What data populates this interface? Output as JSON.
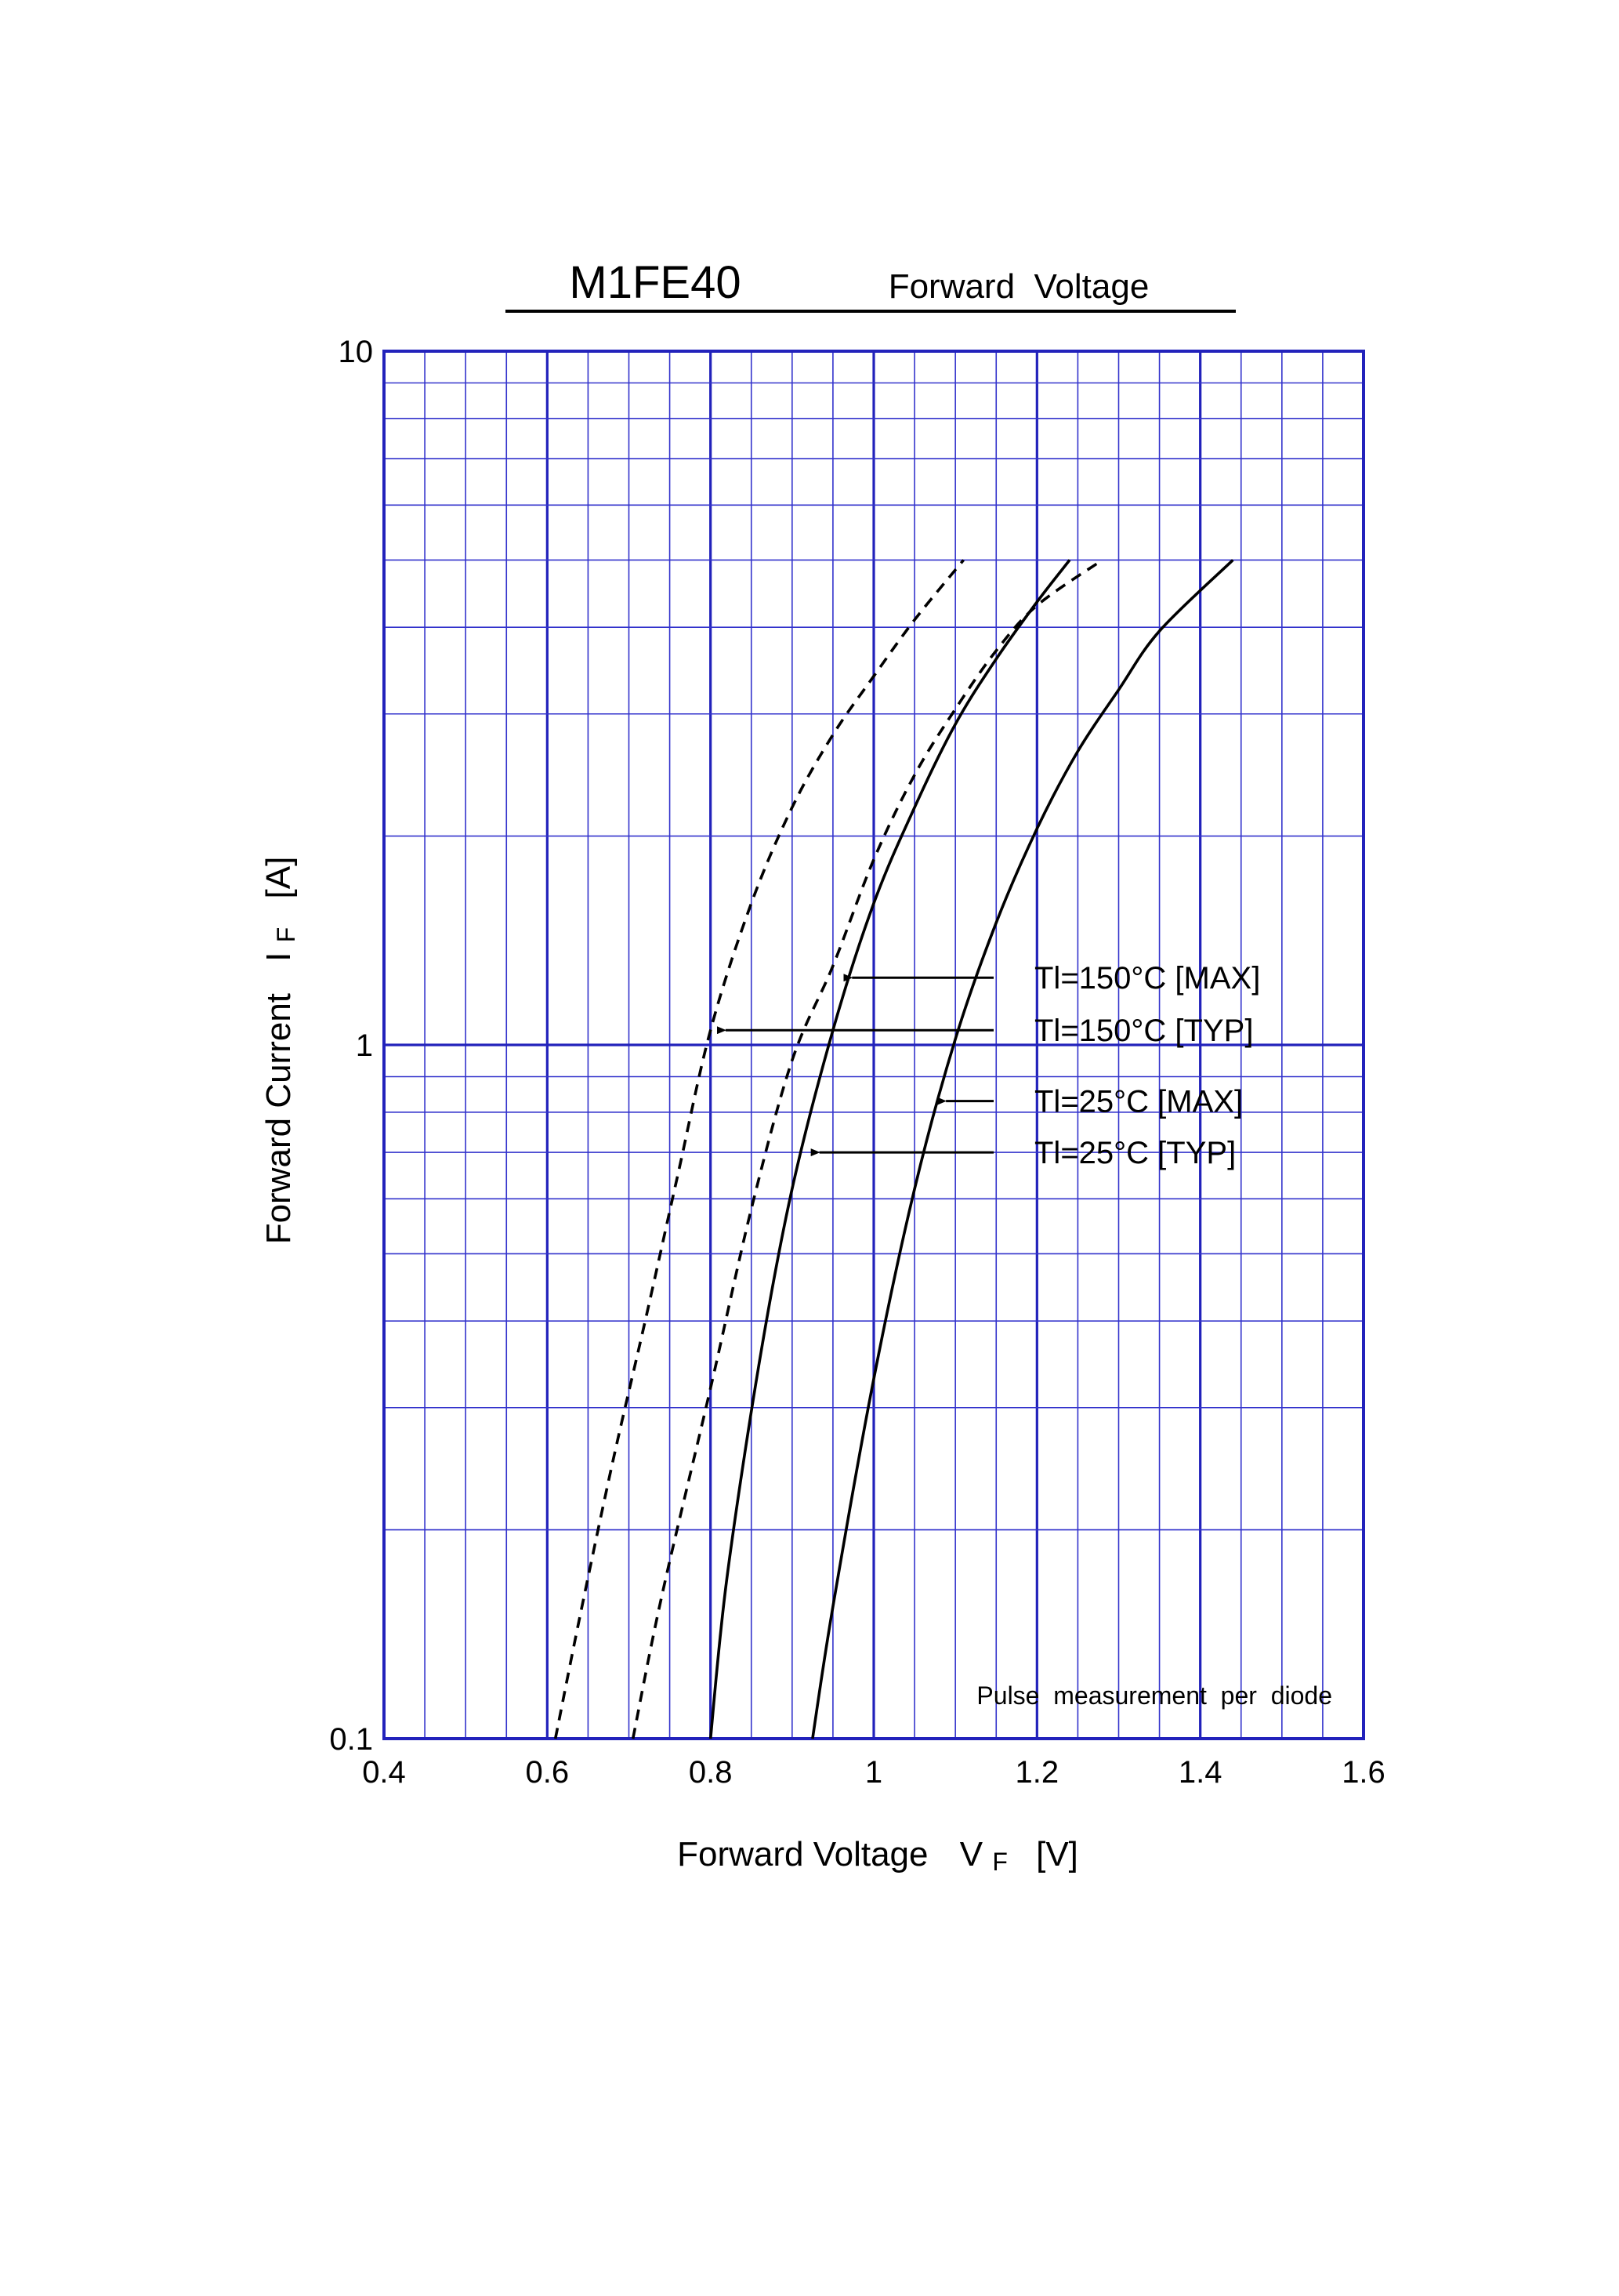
{
  "page": {
    "title_model": "M1FE40",
    "title_text": "Forward  Voltage",
    "note": "Pulse  measurement  per  diode"
  },
  "chart_data": {
    "type": "line",
    "title": "M1FE40",
    "subtitle": "Forward  Voltage",
    "xlabel": "Forward Voltage",
    "xlabel_symbol": "V",
    "xlabel_subscript": "F",
    "xlabel_unit": "[V]",
    "ylabel": "Forward Current",
    "ylabel_symbol": "I",
    "ylabel_subscript": "F",
    "ylabel_unit": "[A]",
    "xlim": [
      0.4,
      1.6
    ],
    "ylim": [
      0.1,
      10
    ],
    "yscale": "log",
    "grid": true,
    "grid_color": "#2222bb",
    "line_color": "#000000",
    "x_ticks": [
      0.4,
      0.6,
      0.8,
      1,
      1.2,
      1.4,
      1.6
    ],
    "x_tick_labels": [
      "0.4",
      "0.6",
      "0.8",
      "1",
      "1.2",
      "1.4",
      "1.6"
    ],
    "x_minor_step": 0.05,
    "y_tick_labels": [
      {
        "value": 0.1,
        "label": "0.1"
      },
      {
        "value": 1,
        "label": "1"
      },
      {
        "value": 10,
        "label": "10"
      }
    ],
    "annotations": [
      {
        "label": "Tl=150°C [MAX]",
        "arrow_to": [
          0.96,
          1.25
        ]
      },
      {
        "label": "Tl=150°C [TYP]",
        "arrow_to": [
          0.805,
          1.05
        ]
      },
      {
        "label": "Tl=25°C [MAX]",
        "arrow_to": [
          1.075,
          0.83
        ]
      },
      {
        "label": "Tl=25°C [TYP]",
        "arrow_to": [
          0.92,
          0.7
        ]
      }
    ],
    "series": [
      {
        "name": "Tl=150°C [TYP]",
        "style": "dashed",
        "points": [
          [
            0.61,
            0.1
          ],
          [
            0.64,
            0.15
          ],
          [
            0.68,
            0.25
          ],
          [
            0.72,
            0.4
          ],
          [
            0.76,
            0.65
          ],
          [
            0.8,
            1.05
          ],
          [
            0.85,
            1.6
          ],
          [
            0.9,
            2.2
          ],
          [
            0.95,
            2.8
          ],
          [
            1.0,
            3.4
          ],
          [
            1.05,
            4.1
          ],
          [
            1.11,
            5.0
          ]
        ]
      },
      {
        "name": "Tl=150°C [MAX]",
        "style": "dashed",
        "points": [
          [
            0.705,
            0.1
          ],
          [
            0.74,
            0.16
          ],
          [
            0.8,
            0.32
          ],
          [
            0.85,
            0.58
          ],
          [
            0.9,
            0.95
          ],
          [
            0.95,
            1.3
          ],
          [
            1.0,
            1.85
          ],
          [
            1.05,
            2.45
          ],
          [
            1.1,
            3.05
          ],
          [
            1.15,
            3.7
          ],
          [
            1.2,
            4.3
          ],
          [
            1.28,
            5.0
          ]
        ]
      },
      {
        "name": "Tl=25°C [TYP]",
        "style": "solid",
        "points": [
          [
            0.8,
            0.1
          ],
          [
            0.82,
            0.17
          ],
          [
            0.86,
            0.35
          ],
          [
            0.9,
            0.62
          ],
          [
            0.95,
            1.05
          ],
          [
            1.0,
            1.6
          ],
          [
            1.05,
            2.2
          ],
          [
            1.1,
            2.9
          ],
          [
            1.15,
            3.6
          ],
          [
            1.2,
            4.35
          ],
          [
            1.24,
            5.0
          ]
        ]
      },
      {
        "name": "Tl=25°C [MAX]",
        "style": "solid",
        "points": [
          [
            0.925,
            0.1
          ],
          [
            0.95,
            0.155
          ],
          [
            1.0,
            0.33
          ],
          [
            1.05,
            0.62
          ],
          [
            1.1,
            1.02
          ],
          [
            1.15,
            1.5
          ],
          [
            1.2,
            2.05
          ],
          [
            1.25,
            2.65
          ],
          [
            1.3,
            3.25
          ],
          [
            1.35,
            3.95
          ],
          [
            1.44,
            5.0
          ]
        ]
      }
    ]
  }
}
